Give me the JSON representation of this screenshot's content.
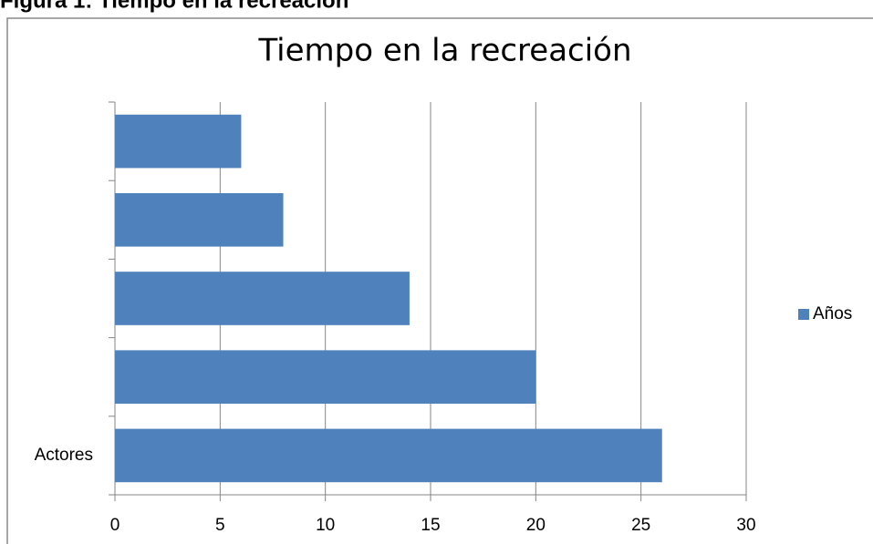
{
  "caption": "Figura 1: Tiempo en la recreación",
  "chart_data": {
    "type": "bar",
    "orientation": "horizontal",
    "title": "Tiempo en la recreación",
    "categories": [
      "Actores",
      null,
      null,
      null,
      null
    ],
    "series": [
      {
        "name": "Años",
        "color": "#4f81bd",
        "values": [
          26,
          20,
          14,
          8,
          6
        ]
      }
    ],
    "xlim": [
      0,
      30
    ],
    "xticks": [
      0,
      5,
      10,
      15,
      20,
      25,
      30
    ],
    "grid": true,
    "legend": "right"
  }
}
